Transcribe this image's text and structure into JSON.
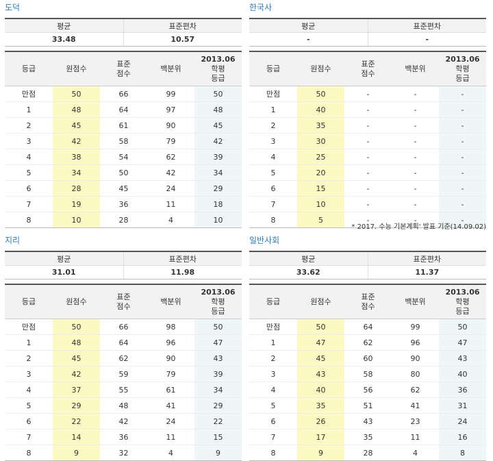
{
  "labels": {
    "mean": "평균",
    "stddev": "표준편차",
    "col_grade": "등급",
    "col_raw": "원점수",
    "col_std_1": "표준",
    "col_std_2": "점수",
    "col_pct": "백분위",
    "col_year": "2013.06",
    "col_year_sub_1": "학평",
    "col_year_sub_2": "등급"
  },
  "panels": [
    {
      "title": "도덕",
      "mean": "33.48",
      "stddev": "10.57",
      "rows": [
        [
          "만점",
          "50",
          "66",
          "99",
          "50"
        ],
        [
          "1",
          "48",
          "64",
          "97",
          "48"
        ],
        [
          "2",
          "45",
          "61",
          "90",
          "45"
        ],
        [
          "3",
          "42",
          "58",
          "79",
          "42"
        ],
        [
          "4",
          "38",
          "54",
          "62",
          "39"
        ],
        [
          "5",
          "34",
          "50",
          "42",
          "34"
        ],
        [
          "6",
          "28",
          "45",
          "24",
          "29"
        ],
        [
          "7",
          "19",
          "36",
          "11",
          "18"
        ],
        [
          "8",
          "10",
          "28",
          "4",
          "10"
        ]
      ]
    },
    {
      "title": "한국사",
      "mean": "-",
      "stddev": "-",
      "rows": [
        [
          "만점",
          "50",
          "-",
          "-",
          "-"
        ],
        [
          "1",
          "40",
          "-",
          "-",
          "-"
        ],
        [
          "2",
          "35",
          "-",
          "-",
          "-"
        ],
        [
          "3",
          "30",
          "-",
          "-",
          "-"
        ],
        [
          "4",
          "25",
          "-",
          "-",
          "-"
        ],
        [
          "5",
          "20",
          "-",
          "-",
          "-"
        ],
        [
          "6",
          "15",
          "-",
          "-",
          "-"
        ],
        [
          "7",
          "10",
          "-",
          "-",
          "-"
        ],
        [
          "8",
          "5",
          "-",
          "-",
          "-"
        ]
      ],
      "note": "* 2017. 수능 기본계획' 발표 기준(14.09.02)"
    },
    {
      "title": "지리",
      "mean": "31.01",
      "stddev": "11.98",
      "rows": [
        [
          "만점",
          "50",
          "66",
          "98",
          "50"
        ],
        [
          "1",
          "48",
          "64",
          "96",
          "47"
        ],
        [
          "2",
          "45",
          "62",
          "90",
          "43"
        ],
        [
          "3",
          "42",
          "59",
          "79",
          "39"
        ],
        [
          "4",
          "37",
          "55",
          "61",
          "34"
        ],
        [
          "5",
          "29",
          "48",
          "41",
          "29"
        ],
        [
          "6",
          "22",
          "42",
          "24",
          "22"
        ],
        [
          "7",
          "14",
          "36",
          "11",
          "15"
        ],
        [
          "8",
          "9",
          "32",
          "4",
          "9"
        ]
      ]
    },
    {
      "title": "일반사회",
      "mean": "33.62",
      "stddev": "11.37",
      "rows": [
        [
          "만점",
          "50",
          "64",
          "99",
          "50"
        ],
        [
          "1",
          "47",
          "62",
          "96",
          "47"
        ],
        [
          "2",
          "45",
          "60",
          "90",
          "43"
        ],
        [
          "3",
          "43",
          "58",
          "80",
          "40"
        ],
        [
          "4",
          "40",
          "56",
          "62",
          "36"
        ],
        [
          "5",
          "35",
          "51",
          "41",
          "31"
        ],
        [
          "6",
          "26",
          "43",
          "23",
          "24"
        ],
        [
          "7",
          "17",
          "35",
          "11",
          "16"
        ],
        [
          "8",
          "9",
          "28",
          "4",
          "8"
        ]
      ]
    }
  ]
}
